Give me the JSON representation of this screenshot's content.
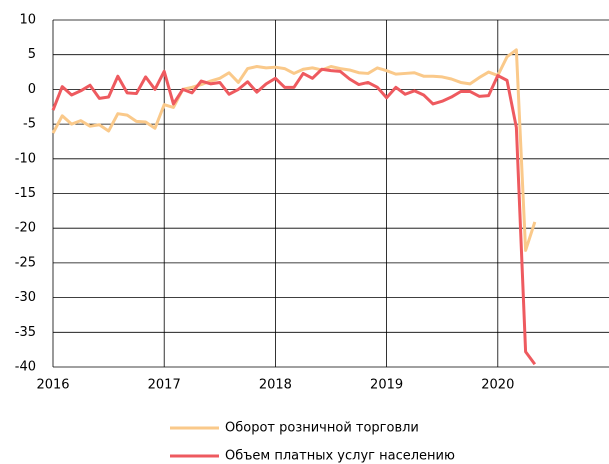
{
  "chart_data": {
    "type": "line",
    "x": [
      2016,
      2016.083,
      2016.167,
      2016.25,
      2016.333,
      2016.417,
      2016.5,
      2016.583,
      2016.667,
      2016.75,
      2016.833,
      2016.917,
      2017,
      2017.083,
      2017.167,
      2017.25,
      2017.333,
      2017.417,
      2017.5,
      2017.583,
      2017.667,
      2017.75,
      2017.833,
      2017.917,
      2018,
      2018.083,
      2018.167,
      2018.25,
      2018.333,
      2018.417,
      2018.5,
      2018.583,
      2018.667,
      2018.75,
      2018.833,
      2018.917,
      2019,
      2019.083,
      2019.167,
      2019.25,
      2019.333,
      2019.417,
      2019.5,
      2019.583,
      2019.667,
      2019.75,
      2019.833,
      2019.917,
      2020,
      2020.083,
      2020.167,
      2020.25,
      2020.333
    ],
    "series": [
      {
        "name": "Оборот розничной торговли",
        "color": "#fac98a",
        "values": [
          -6.3,
          -3.8,
          -5.0,
          -4.5,
          -5.3,
          -5.1,
          -6.0,
          -3.5,
          -3.7,
          -4.6,
          -4.7,
          -5.6,
          -2.2,
          -2.6,
          0.0,
          0.3,
          0.7,
          1.2,
          1.6,
          2.4,
          1.0,
          3.0,
          3.3,
          3.1,
          3.2,
          3.0,
          2.3,
          2.9,
          3.1,
          2.8,
          3.3,
          3.0,
          2.8,
          2.4,
          2.3,
          3.1,
          2.7,
          2.2,
          2.3,
          2.4,
          1.9,
          1.9,
          1.8,
          1.5,
          1.0,
          0.8,
          1.7,
          2.5,
          2.0,
          4.7,
          5.7,
          -23.2,
          -19.1
        ]
      },
      {
        "name": "Объем платных услуг населению",
        "color": "#ee5a5f",
        "values": [
          -3.0,
          0.4,
          -0.8,
          -0.2,
          0.6,
          -1.3,
          -1.1,
          1.9,
          -0.5,
          -0.6,
          1.8,
          0.0,
          2.6,
          -2.1,
          0.0,
          -0.5,
          1.2,
          0.8,
          1.0,
          -0.7,
          0.0,
          1.1,
          -0.4,
          0.8,
          1.6,
          0.3,
          0.3,
          2.3,
          1.6,
          2.9,
          2.7,
          2.6,
          1.5,
          0.7,
          1.0,
          0.3,
          -1.2,
          0.3,
          -0.7,
          -0.2,
          -0.8,
          -2.1,
          -1.7,
          -1.1,
          -0.3,
          -0.3,
          -1.0,
          -0.9,
          2.0,
          1.3,
          -5.5,
          -37.8,
          -39.6
        ]
      }
    ],
    "xlim": [
      2016,
      2021
    ],
    "xticks": [
      2016,
      2017,
      2018,
      2019,
      2020
    ],
    "ylim": [
      -40,
      10
    ],
    "yticks": [
      10,
      5,
      0,
      -5,
      -10,
      -15,
      -20,
      -25,
      -30,
      -35,
      -40
    ],
    "grid": true,
    "legend": "bottom"
  }
}
